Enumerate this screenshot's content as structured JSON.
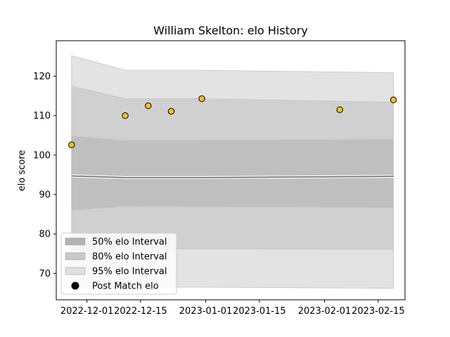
{
  "chart_data": {
    "type": "area",
    "title": "William Skelton: elo History",
    "xlabel": "",
    "ylabel": "elo score",
    "x_ticks": [
      "2022-12-01",
      "2022-12-15",
      "2023-01-01",
      "2023-01-15",
      "2023-02-01",
      "2023-02-15"
    ],
    "y_ticks": [
      70,
      80,
      90,
      100,
      110,
      120
    ],
    "xlim": [
      "2022-11-23",
      "2023-02-22"
    ],
    "ylim": [
      63.3,
      129
    ],
    "dates": [
      "2022-11-27",
      "2022-12-11",
      "2022-12-31",
      "2023-02-19"
    ],
    "bands": [
      {
        "name": "95% elo Interval",
        "color": "#e3e3e3",
        "lower": [
          66.5,
          66.5,
          66.5,
          66.2
        ],
        "upper": [
          125.2,
          121.5,
          121.5,
          120.9
        ]
      },
      {
        "name": "80% elo Interval",
        "color": "#d0d0d0",
        "lower": [
          75.8,
          76.2,
          76.2,
          76.1
        ],
        "upper": [
          117.5,
          114.3,
          114.3,
          113.4
        ]
      },
      {
        "name": "50% elo Interval",
        "color": "#bfbfbf",
        "lower": [
          86.0,
          87.0,
          86.9,
          86.7
        ],
        "upper": [
          104.8,
          103.7,
          103.7,
          104.0
        ]
      }
    ],
    "mean_line": {
      "values": [
        94.7,
        94.3,
        94.3,
        94.6
      ],
      "color": "#6e6e6e"
    },
    "post_match": {
      "name": "Post Match elo",
      "color": "#f0c020",
      "x": [
        "2022-11-27",
        "2022-12-11",
        "2022-12-17",
        "2022-12-23",
        "2022-12-31",
        "2023-02-05",
        "2023-02-19"
      ],
      "y": [
        102.6,
        110.0,
        112.5,
        111.1,
        114.3,
        111.5,
        114.0
      ]
    },
    "legend": {
      "position": "lower-left",
      "entries": [
        {
          "label": "50% elo Interval",
          "color": "#b3b3b3",
          "kind": "patch"
        },
        {
          "label": "80% elo Interval",
          "color": "#c8c8c8",
          "kind": "patch"
        },
        {
          "label": "95% elo Interval",
          "color": "#e0e0e0",
          "kind": "patch"
        },
        {
          "label": "Post Match elo",
          "color": "#000000",
          "kind": "marker"
        }
      ]
    },
    "grid": false
  }
}
